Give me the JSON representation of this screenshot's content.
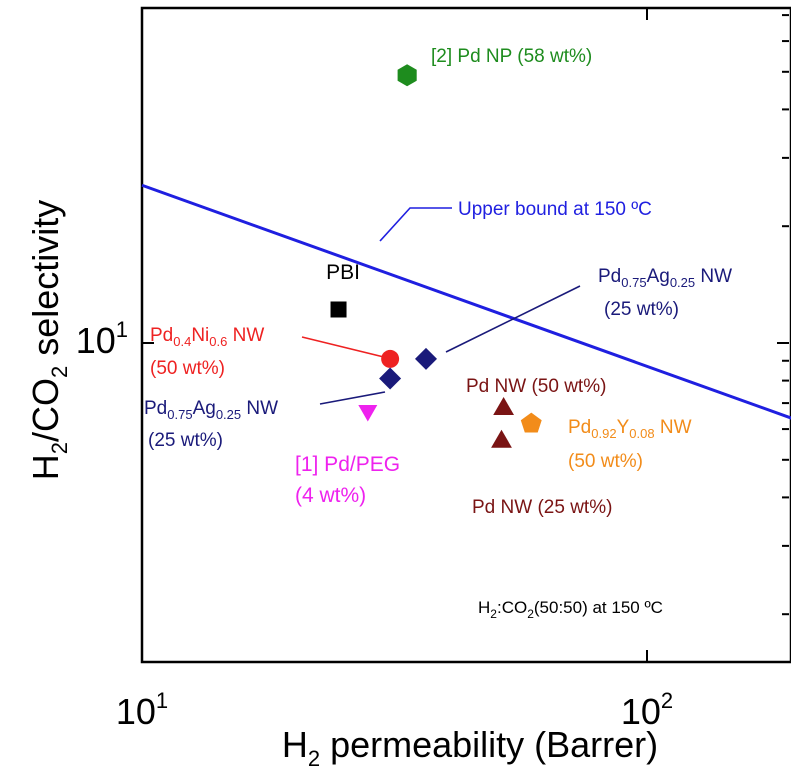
{
  "chart_data": {
    "type": "scatter",
    "xscale": "log",
    "yscale": "log",
    "xlim": [
      10,
      200
    ],
    "ylim": [
      2,
      65
    ],
    "x_ticks": [
      {
        "value": 10,
        "base": "10",
        "exp": "1"
      },
      {
        "value": 100,
        "base": "10",
        "exp": "2"
      }
    ],
    "y_ticks": [
      {
        "value": 10,
        "base": "10",
        "exp": "1"
      }
    ],
    "xlabel": {
      "main": "H",
      "sub": "2",
      "rest": " permeability (Barrer)"
    },
    "ylabel": {
      "p1": "H",
      "s1": "2",
      "p2": "/CO",
      "s2": "2",
      "p3": " selectivity"
    },
    "condition": {
      "p1": "H",
      "s1": "2",
      "p2": ":CO",
      "s2": "2",
      "p3": "(50:50) at 150 ",
      "unit": "ºC"
    },
    "upper_bound": {
      "label": "Upper bound at 150 ºC",
      "color": "#1f1fe0",
      "points": [
        [
          10,
          25.5
        ],
        [
          200,
          6.3
        ]
      ]
    },
    "points": [
      {
        "name": "[2] Pd NP (58 wt%)",
        "x": 33.5,
        "y": 49,
        "marker": "hexagon",
        "color": "#1e8c1e"
      },
      {
        "name": "PBI",
        "x": 24.5,
        "y": 12.2,
        "marker": "square",
        "color": "#000000"
      },
      {
        "name": "Pd0.4Ni0.6 NW (50 wt%)",
        "x": 31,
        "y": 9.1,
        "marker": "circle",
        "color": "#ee2222"
      },
      {
        "name": "Pd0.75Ag0.25 NW (25 wt%)",
        "x": 36.5,
        "y": 9.1,
        "marker": "diamond",
        "color": "#1a1a7a"
      },
      {
        "name": "Pd0.75Ag0.25 NW (25 wt%)",
        "x": 31,
        "y": 8.1,
        "marker": "diamond",
        "color": "#1a1a7a"
      },
      {
        "name": "[1] Pd/PEG (4 wt%)",
        "x": 28,
        "y": 6.7,
        "marker": "triangle-down",
        "color": "#ee22ee"
      },
      {
        "name": "Pd NW (50 wt%)",
        "x": 52,
        "y": 6.8,
        "marker": "triangle-up",
        "color": "#7a1414"
      },
      {
        "name": "Pd NW (25 wt%)",
        "x": 51.5,
        "y": 5.6,
        "marker": "triangle-up",
        "color": "#7a1414"
      },
      {
        "name": "Pd0.92Y0.08 NW (50 wt%)",
        "x": 59,
        "y": 6.2,
        "marker": "pentagon",
        "color": "#f28c1a"
      }
    ]
  },
  "annotations": {
    "pd_np": "[2] Pd NP (58 wt%)",
    "pbi": "PBI",
    "pdni": {
      "b1": "Pd",
      "s1": "0.4",
      "b2": "Ni",
      "s2": "0.6",
      "b3": " NW",
      "line2": "(50 wt%)"
    },
    "pdag_right": {
      "b1": "Pd",
      "s1": "0.75",
      "b2": "Ag",
      "s2": "0.25",
      "b3": " NW",
      "line2": "(25 wt%)"
    },
    "pdag_left": {
      "b1": "Pd",
      "s1": "0.75",
      "b2": "Ag",
      "s2": "0.25",
      "b3": " NW",
      "line2": "(25 wt%)"
    },
    "pdpeg": {
      "line1": "[1] Pd/PEG",
      "line2": "(4 wt%)"
    },
    "pdnw50": "Pd NW (50 wt%)",
    "pdnw25": "Pd NW (25 wt%)",
    "pdy": {
      "b1": "Pd",
      "s1": "0.92",
      "b2": "Y",
      "s2": "0.08",
      "b3": " NW",
      "line2": "(50 wt%)"
    }
  }
}
